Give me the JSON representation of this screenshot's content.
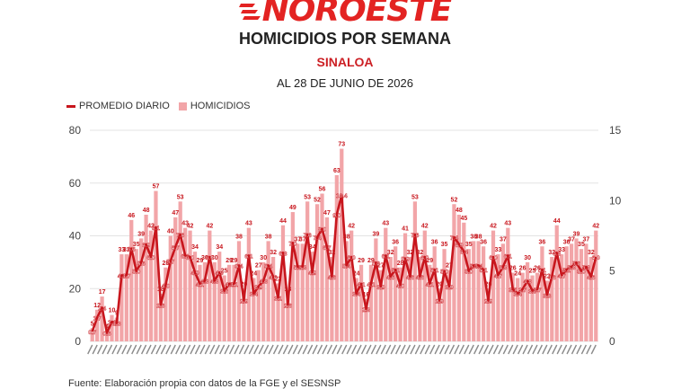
{
  "header": {
    "logo": "NOROESTE",
    "title": "HOMICIDIOS POR SEMANA",
    "subtitle": "SINALOA",
    "date": "AL 28 DE JUNIO DE 2026"
  },
  "legend": {
    "line_label": "PROMEDIO DIARIO",
    "bar_label": "HOMICIDIOS"
  },
  "source": "Fuente: Elaboración propia con datos de la FGE y el SESNSP",
  "colors": {
    "brand": "#e32322",
    "bars": "#f2a5a8",
    "line": "#c8161d",
    "grid": "#e3e3e3"
  },
  "chart_data": {
    "type": "bar",
    "title": "HOMICIDIOS POR SEMANA",
    "xlabel": "",
    "ylabel": "",
    "ylim": [
      0,
      80
    ],
    "y2lim": [
      0,
      15
    ],
    "yticks": [
      0,
      20,
      40,
      60,
      80
    ],
    "y2ticks": [
      0,
      5,
      10,
      15
    ],
    "grid": true,
    "legend_position": "top-left",
    "series": [
      {
        "name": "HOMICIDIOS",
        "type": "bar",
        "axis": "left",
        "values": [
          5,
          12,
          17,
          4,
          10,
          9,
          33,
          33,
          46,
          35,
          39,
          48,
          42,
          57,
          18,
          28,
          40,
          47,
          53,
          43,
          42,
          34,
          29,
          30,
          42,
          30,
          34,
          25,
          29,
          29,
          38,
          20,
          43,
          24,
          27,
          30,
          38,
          32,
          22,
          44,
          18,
          49,
          37,
          37,
          53,
          34,
          52,
          56,
          47,
          32,
          63,
          73,
          38,
          42,
          24,
          29,
          16,
          29,
          39,
          27,
          43,
          32,
          36,
          28,
          41,
          32,
          53,
          32,
          42,
          29,
          36,
          20,
          35,
          27,
          52,
          48,
          45,
          35,
          38,
          38,
          36,
          20,
          42,
          33,
          37,
          43,
          26,
          24,
          26,
          30,
          25,
          26,
          36,
          23,
          32,
          44,
          33,
          36,
          37,
          39,
          35,
          37,
          32,
          42
        ]
      },
      {
        "name": "PROMEDIO DIARIO",
        "type": "line",
        "axis": "right",
        "values": [
          0.7,
          1.7,
          2.4,
          0.6,
          1.4,
          1.3,
          4.7,
          4.7,
          6.6,
          5.0,
          5.6,
          6.9,
          6.0,
          8.1,
          2.6,
          4.0,
          5.7,
          6.7,
          7.6,
          6.1,
          6.0,
          4.9,
          4.1,
          4.3,
          6.0,
          4.3,
          4.9,
          3.6,
          4.1,
          4.1,
          5.4,
          2.9,
          6.1,
          3.4,
          3.9,
          4.3,
          5.4,
          4.6,
          3.1,
          6.3,
          2.6,
          7.0,
          5.3,
          5.3,
          7.6,
          4.9,
          7.4,
          8.0,
          6.7,
          4.6,
          9.0,
          10.4,
          5.4,
          6.0,
          3.4,
          4.1,
          2.3,
          4.1,
          5.6,
          3.9,
          6.1,
          4.6,
          5.1,
          4.0,
          5.9,
          4.6,
          7.6,
          4.6,
          6.0,
          4.1,
          5.1,
          2.9,
          5.0,
          3.9,
          7.4,
          6.9,
          6.4,
          5.0,
          5.4,
          5.4,
          5.1,
          2.9,
          6.0,
          4.7,
          5.3,
          6.1,
          3.7,
          3.4,
          3.7,
          4.3,
          3.6,
          3.7,
          5.1,
          3.3,
          4.6,
          6.3,
          4.7,
          5.1,
          5.3,
          5.6,
          5.0,
          5.3,
          4.6,
          6.0
        ]
      }
    ],
    "x_tick_labels": "illegible date labels (rotated), one per week"
  }
}
